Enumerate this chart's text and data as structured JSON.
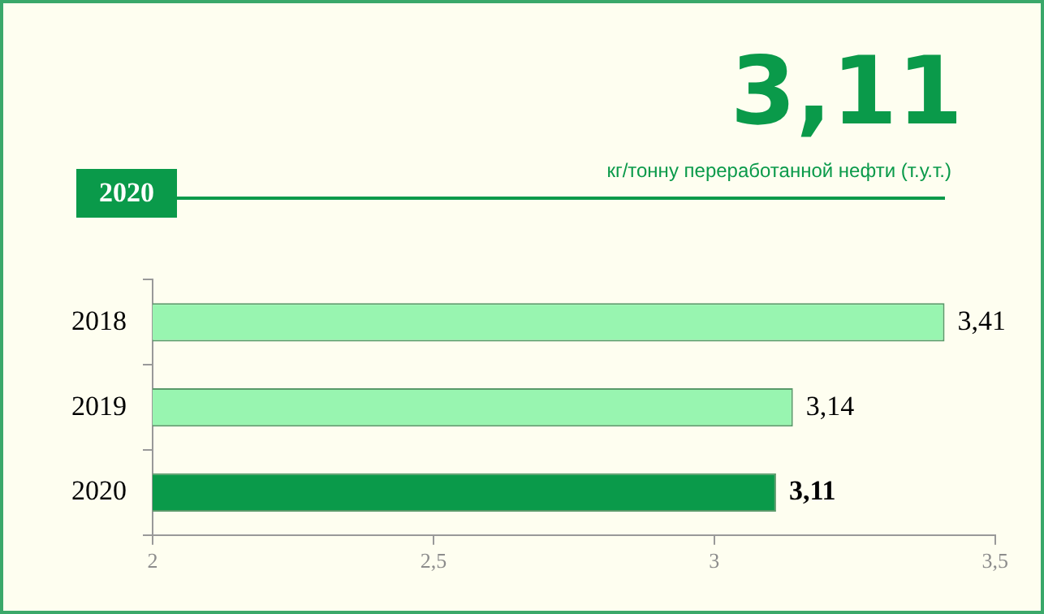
{
  "chart_data": {
    "type": "bar",
    "orientation": "horizontal",
    "title": "3,11",
    "subtitle": "кг/тонну переработанной нефти (т.у.т.)",
    "annotations": [
      "2020"
    ],
    "categories": [
      "2018",
      "2019",
      "2020"
    ],
    "values": [
      3.41,
      3.14,
      3.11
    ],
    "colors": [
      "#98f5b0",
      "#98f5b0",
      "#0a9a4a"
    ],
    "value_labels": [
      "3,41",
      "3,14",
      "3,11"
    ],
    "xlim": [
      2,
      3.5
    ],
    "xticks": [
      2,
      {
        "value": 2.5,
        "label": "2,5"
      },
      3,
      {
        "value": 3.5,
        "label": "3,5"
      }
    ],
    "grid": false,
    "legend": false
  }
}
